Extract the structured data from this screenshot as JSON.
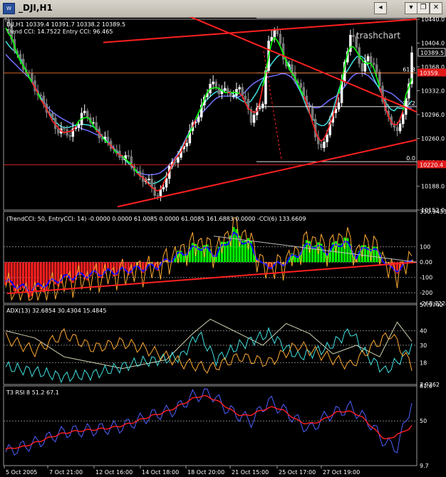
{
  "window": {
    "title": "_DJI,H1",
    "icon": "chart-window-icon",
    "buttons": {
      "scroll_left": "◂",
      "menu": "▾",
      "restore": "❐",
      "close": "✕"
    }
  },
  "chart_data": [
    {
      "name": "main",
      "type": "candlestick",
      "header": "DJI,H1  10339.4 10391.7 10338.2 10389.5",
      "subheader": "Trend CCI: 14.7522 Entry CCI: 96.465",
      "watermark": "trashchart",
      "ylim": [
        10152.0,
        10440.0
      ],
      "y_ticks": [
        "10440.0",
        "10404.0",
        "10368.0",
        "10332.0",
        "10296.0",
        "10260.0",
        "10224.0",
        "10188.0",
        "10152.0"
      ],
      "price_label": "10389.5",
      "red_labels": [
        "10359.",
        "10220.4"
      ],
      "fib_levels": [
        {
          "label": "100.0",
          "value": 10442
        },
        {
          "label": "61.8",
          "value": 10359
        },
        {
          "label": "38.2",
          "value": 10308
        },
        {
          "label": "0.0",
          "value": 10225
        }
      ],
      "colors": {
        "up": "#ffffff",
        "down": "#8c8c8c",
        "trendlines": "#ff2020",
        "ma_blue": "#7070ff",
        "ma_cyan": "#40e0e0",
        "tcci_green": "#00ff00",
        "tcci_red": "#ff2020"
      }
    },
    {
      "name": "trend-cci",
      "type": "histogram",
      "header": "(TrendCCI: 50, EntryCCI: 14) -0.0000 0.0000 61.0085 0.0000 61.0085 161.6883 0.0000 -CCI(6) 133.6609",
      "ylim": [
        -268.7228,
        330.9433
      ],
      "y_ticks": [
        "330.9433",
        "100",
        "0.00",
        "-100",
        "-200",
        "-268.7228"
      ],
      "levels": [
        100,
        0,
        -100,
        -200
      ],
      "colors": {
        "up": "#00ff00",
        "down": "#ff2020",
        "neutral": "#ffaa30",
        "cci": "#0000ff",
        "cci6": "#ffaa30",
        "trend": "#ff2020"
      }
    },
    {
      "name": "adx",
      "type": "line",
      "header": "ADX(13) 32.6854 30.4304 15.4845",
      "ylim": [
        2.9362,
        57.9742
      ],
      "y_ticks": [
        "57.9742",
        "40",
        "30",
        "18",
        "2.9362"
      ],
      "levels": [
        40,
        30,
        18
      ],
      "series": [
        {
          "name": "ADX",
          "color": "#d0d0b0",
          "last": 32.6854
        },
        {
          "name": "+DI",
          "color": "#40e0e0",
          "last": 30.4304
        },
        {
          "name": "-DI",
          "color": "#ffaa30",
          "last": 15.4845
        }
      ]
    },
    {
      "name": "t3-rsi",
      "type": "line",
      "header": "T3 RSI 8 51.2 67.1",
      "ylim": [
        9.7,
        81.6
      ],
      "y_ticks": [
        "81.6",
        "50",
        "9.7"
      ],
      "levels": [
        50
      ],
      "series": [
        {
          "name": "RSI",
          "color": "#5060ff",
          "last": 67.1
        },
        {
          "name": "T3",
          "color": "#ff2020",
          "last": 51.2
        }
      ]
    }
  ],
  "x_labels": [
    "5 Oct 2005",
    "7 Oct 21:00",
    "12 Oct 16:00",
    "14 Oct 18:00",
    "18 Oct 20:00",
    "21 Oct 15:00",
    "25 Oct 17:00",
    "27 Oct 19:00"
  ]
}
